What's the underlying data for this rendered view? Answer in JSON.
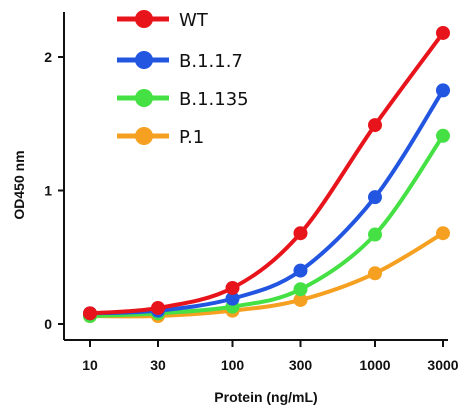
{
  "chart_data": {
    "type": "line",
    "title": "",
    "xlabel": "Protein (ng/mL)",
    "ylabel": "OD450 nm",
    "x_scale": "log",
    "x": [
      10,
      30,
      100,
      300,
      1000,
      3000
    ],
    "x_tick_labels": [
      "10",
      "30",
      "100",
      "300",
      "1000",
      "3000"
    ],
    "y_ticks": [
      0,
      1,
      2
    ],
    "y_tick_labels": [
      "0",
      "1",
      "2"
    ],
    "ylim": [
      -0.05,
      2.3
    ],
    "xlim": [
      10,
      3000
    ],
    "grid": false,
    "legend_position": "top-left",
    "series": [
      {
        "name": "WT",
        "color": "#e8141b",
        "values": [
          0.08,
          0.12,
          0.27,
          0.68,
          1.49,
          2.18
        ]
      },
      {
        "name": "B.1.1.7",
        "color": "#2255e0",
        "values": [
          0.08,
          0.1,
          0.19,
          0.4,
          0.95,
          1.75
        ]
      },
      {
        "name": "B.1.135",
        "color": "#44e044",
        "values": [
          0.06,
          0.08,
          0.13,
          0.26,
          0.67,
          1.41
        ]
      },
      {
        "name": "P.1",
        "color": "#f5a021",
        "values": [
          0.06,
          0.06,
          0.1,
          0.18,
          0.38,
          0.68
        ]
      }
    ]
  }
}
